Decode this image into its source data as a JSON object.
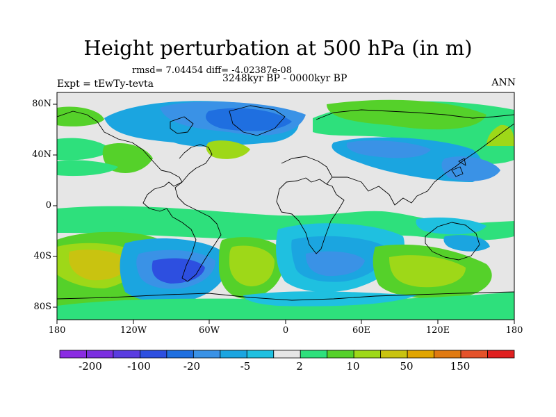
{
  "title": "Height perturbation at 500 hPa (in m)",
  "stats": "rmsd= 7.04454 diff= -4.02387e-08",
  "period": "3248kyr BP - 0000kyr BP",
  "experiment": "Expt = tEwTy-tevta",
  "season": "ANN",
  "lat_ticks": [
    "80N",
    "40N",
    "0",
    "40S",
    "80S"
  ],
  "lon_ticks": [
    "180",
    "120W",
    "60W",
    "0",
    "60E",
    "120E",
    "180"
  ],
  "colorbar": {
    "labels": [
      "-200",
      "-100",
      "-20",
      "-5",
      "2",
      "10",
      "50",
      "150"
    ],
    "colors": [
      "#8a2be2",
      "#7b2fe0",
      "#5a3ce0",
      "#2d4fe0",
      "#1f6fe0",
      "#3a92e6",
      "#1ba5e0",
      "#1fc0e0",
      "#e6e6e6",
      "#2ee07c",
      "#55d12a",
      "#9ed818",
      "#c9c310",
      "#e1a500",
      "#e07a12",
      "#e4522a",
      "#e02020"
    ]
  },
  "palette": {
    "neutral": "#e6e6e6",
    "blue_dark": "#2d4fe0",
    "blue": "#1f6fe0",
    "blue_mid": "#3a92e6",
    "cyan": "#1ba5e0",
    "cyan_light": "#1fc0e0",
    "green_mint": "#2ee07c",
    "green": "#55d12a",
    "yellow_green": "#9ed818",
    "olive": "#c9c310"
  }
}
